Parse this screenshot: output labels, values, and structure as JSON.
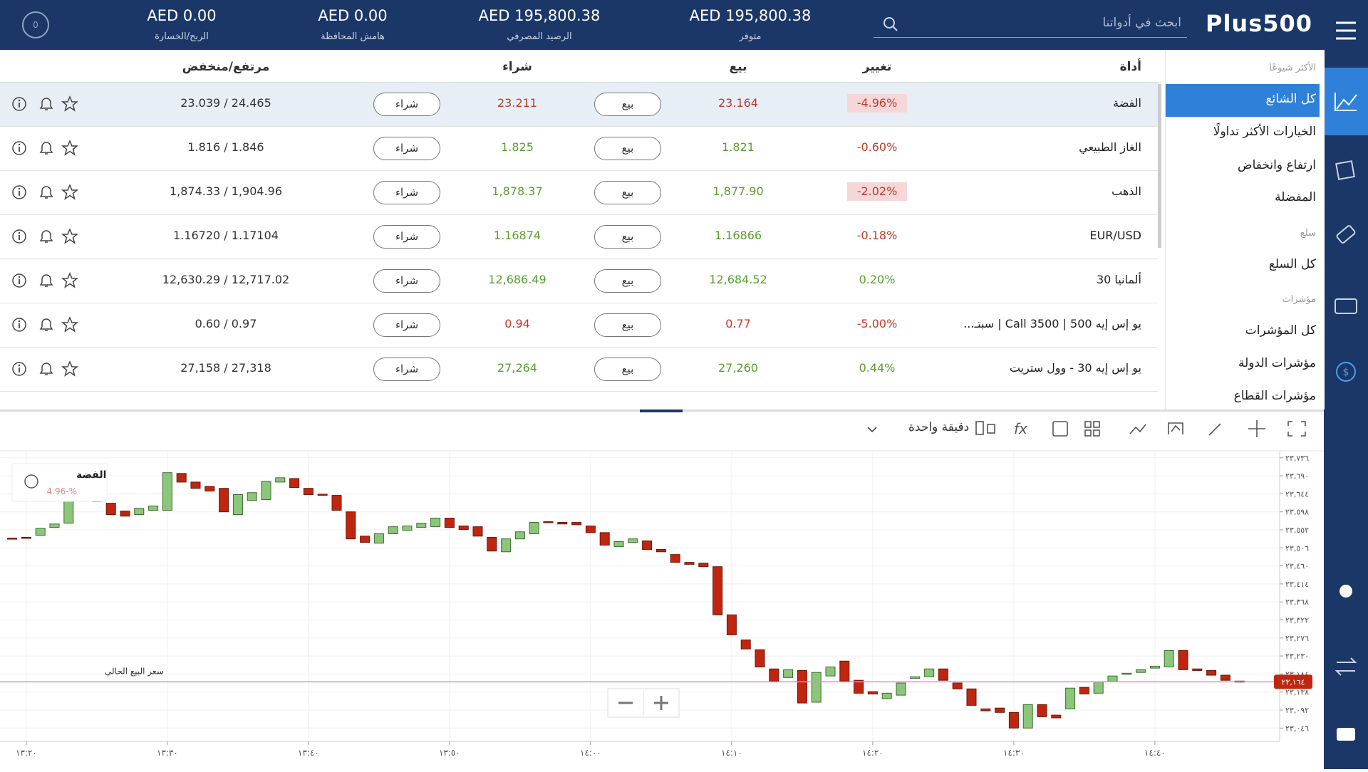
{
  "header": {
    "logo": "Plus500",
    "account_badge": "0",
    "search_placeholder": "ابحث في أدواتنا",
    "stats": [
      {
        "value": "AED 0.00",
        "label": "الربح/الخسارة"
      },
      {
        "value": "AED 0.00",
        "label": "هامش المحافظة"
      },
      {
        "value": "AED 195,800.38",
        "label": "الرصيد المصرفي"
      },
      {
        "value": "AED 195,800.38",
        "label": "متوفر"
      }
    ]
  },
  "menu": [
    {
      "text": "الأكثر شيوعًا",
      "section": true
    },
    {
      "text": "كل الشائع",
      "active": true
    },
    {
      "text": "الخيارات الأكثر تداولًا"
    },
    {
      "text": "ارتفاع وانخفاض"
    },
    {
      "text": "المفضلة"
    },
    {
      "text": "سلع",
      "section": true
    },
    {
      "text": "كل السلع"
    },
    {
      "text": "مؤشرات",
      "section": true
    },
    {
      "text": "كل المؤشرات"
    },
    {
      "text": "مؤشرات الدولة"
    },
    {
      "text": "مؤشرات القطاع"
    }
  ],
  "table": {
    "columns": [
      "أداة",
      "تغيير",
      "بيع",
      "شراء",
      "مرتفع/منخفض"
    ],
    "sell_button": "بيع",
    "buy_button": "شراء",
    "rows": [
      {
        "instrument": "الفضة",
        "change": "-4.96%",
        "sell": "23.164",
        "buy": "23.211",
        "high_low": "23.039 / 24.465",
        "change_color": "#c0392b",
        "change_highlight": true,
        "price_color": "#c0392b"
      },
      {
        "instrument": "الغاز الطبيعي",
        "change": "-0.60%",
        "sell": "1.821",
        "buy": "1.825",
        "high_low": "1.816 / 1.846",
        "change_color": "#c0392b",
        "change_highlight": false,
        "price_color": "#5a9e2f"
      },
      {
        "instrument": "الذهب",
        "change": "-2.02%",
        "sell": "1,877.90",
        "buy": "1,878.37",
        "high_low": "1,874.33 / 1,904.96",
        "change_color": "#c0392b",
        "change_highlight": true,
        "price_color": "#5a9e2f"
      },
      {
        "instrument": "EUR/USD",
        "change": "-0.18%",
        "sell": "1.16866",
        "buy": "1.16874",
        "high_low": "1.16720 / 1.17104",
        "change_color": "#c0392b",
        "change_highlight": false,
        "price_color": "#5a9e2f"
      },
      {
        "instrument": "ألمانيا 30",
        "change": "0.20%",
        "sell": "12,684.52",
        "buy": "12,686.49",
        "high_low": "12,630.29 / 12,717.02",
        "change_color": "#5a9e2f",
        "change_highlight": false,
        "price_color": "#5a9e2f"
      },
      {
        "instrument": "يو إس إيه 500 | Call 3500 | سبتـ...",
        "change": "-5.00%",
        "sell": "0.77",
        "buy": "0.94",
        "high_low": "0.60 / 0.97",
        "change_color": "#c0392b",
        "change_highlight": false,
        "price_color": "#c0392b"
      },
      {
        "instrument": "يو إس إيه 30 - وول ستريت",
        "change": "0.44%",
        "sell": "27,260",
        "buy": "27,264",
        "high_low": "27,158 / 27,318",
        "change_color": "#5a9e2f",
        "change_highlight": false,
        "price_color": "#5a9e2f"
      }
    ]
  },
  "chart_data": {
    "type": "candlestick",
    "instrument": "الفضة",
    "instrument_change": "4.96-%",
    "timeframe": "دقيقة واحدة",
    "current_price_label": "سعر البيع الحالي",
    "current_price": {
      "value": 23.164,
      "label": "٢٣,١٦٤"
    },
    "up_color": "#8cc67a",
    "down_color": "#c0260f",
    "line_color": "#e987d5",
    "grid": true,
    "ylim": [
      23.012,
      23.752
    ],
    "yticks": [
      {
        "value": 23.736,
        "label": "٢٣,٧٣٦"
      },
      {
        "value": 23.69,
        "label": "٢٣,٦٩٠"
      },
      {
        "value": 23.644,
        "label": "٢٣,٦٤٤"
      },
      {
        "value": 23.598,
        "label": "٢٣,٥٩٨"
      },
      {
        "value": 23.552,
        "label": "٢٣,٥٥٢"
      },
      {
        "value": 23.506,
        "label": "٢٣,٥٠٦"
      },
      {
        "value": 23.46,
        "label": "٢٣,٤٦٠"
      },
      {
        "value": 23.414,
        "label": "٢٣,٤١٤"
      },
      {
        "value": 23.368,
        "label": "٢٣,٣٦٨"
      },
      {
        "value": 23.322,
        "label": "٢٣,٣٢٢"
      },
      {
        "value": 23.276,
        "label": "٢٣,٢٧٦"
      },
      {
        "value": 23.23,
        "label": "٢٣,٢٣٠"
      },
      {
        "value": 23.184,
        "label": "٢٣,١٨٤"
      },
      {
        "value": 23.138,
        "label": "٢٣,١٣٨"
      },
      {
        "value": 23.092,
        "label": "٢٣,٠٩٢"
      },
      {
        "value": 23.046,
        "label": "٢٣,٠٤٦"
      }
    ],
    "x_labels": [
      "١٣:٢٠",
      "١٣:٣٠",
      "١٣:٤٠",
      "١٣:٥٠",
      "١٤:٠٠",
      "١٤:١٠",
      "١٤:٢٠",
      "١٤:٣٠",
      "١٤:٤٠"
    ],
    "open": [
      23.531,
      23.533,
      23.538,
      23.558,
      23.569,
      23.629,
      23.627,
      23.62,
      23.6,
      23.591,
      23.602,
      23.602,
      23.696,
      23.674,
      23.663,
      23.658,
      23.591,
      23.627,
      23.629,
      23.674,
      23.683,
      23.658,
      23.643,
      23.64,
      23.598,
      23.536,
      23.518,
      23.542,
      23.551,
      23.558,
      23.56,
      23.582,
      23.562,
      23.56,
      23.533,
      23.496,
      23.529,
      23.542,
      23.573,
      23.571,
      23.571,
      23.562,
      23.545,
      23.509,
      23.52,
      23.524,
      23.502,
      23.489,
      23.469,
      23.467,
      23.458,
      23.335,
      23.271,
      23.246,
      23.197,
      23.175,
      23.193,
      23.112,
      23.179,
      23.217,
      23.168,
      23.139,
      23.121,
      23.13,
      23.173,
      23.177,
      23.197,
      23.161,
      23.146,
      23.095,
      23.097,
      23.086,
      23.046,
      23.106,
      23.079,
      23.095,
      23.15,
      23.135,
      23.164,
      23.184,
      23.188,
      23.199,
      23.202,
      23.244,
      23.197,
      23.193,
      23.181,
      23.166
    ],
    "close": [
      23.529,
      23.531,
      23.556,
      23.567,
      23.625,
      23.627,
      23.625,
      23.591,
      23.587,
      23.607,
      23.613,
      23.698,
      23.674,
      23.658,
      23.651,
      23.598,
      23.642,
      23.647,
      23.676,
      23.685,
      23.66,
      23.642,
      23.642,
      23.602,
      23.529,
      23.52,
      23.542,
      23.56,
      23.562,
      23.569,
      23.582,
      23.558,
      23.553,
      23.536,
      23.498,
      23.529,
      23.547,
      23.571,
      23.571,
      23.567,
      23.565,
      23.545,
      23.513,
      23.522,
      23.529,
      23.502,
      23.496,
      23.469,
      23.464,
      23.458,
      23.335,
      23.284,
      23.248,
      23.202,
      23.166,
      23.195,
      23.11,
      23.188,
      23.202,
      23.166,
      23.135,
      23.133,
      23.135,
      23.161,
      23.177,
      23.197,
      23.168,
      23.146,
      23.104,
      23.09,
      23.086,
      23.046,
      23.106,
      23.075,
      23.072,
      23.148,
      23.133,
      23.164,
      23.179,
      23.186,
      23.195,
      23.204,
      23.244,
      23.195,
      23.193,
      23.181,
      23.168,
      23.164
    ]
  }
}
